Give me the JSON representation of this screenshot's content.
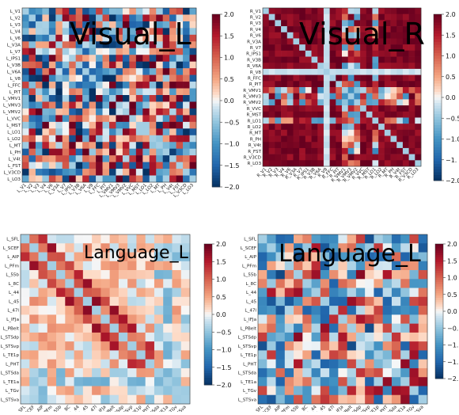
{
  "colorbar": {
    "ticks": [
      "2.0",
      "1.5",
      "1.0",
      "0.5",
      "0.0",
      "−0.5",
      "−1.0",
      "−1.5",
      "−2.0"
    ],
    "ticks_right_cut": [
      "2.0",
      "1.5",
      "1.0",
      "0.5",
      "0.0",
      "−0.5",
      "−1.0",
      "−1.5",
      "−2.0"
    ],
    "ticks_cut": [
      "2.0",
      "1.5",
      "1.0",
      "0.5",
      "0.0",
      "−0.",
      "−1.",
      "−1.",
      "−2."
    ],
    "ticks_vr": [
      "2.0",
      "1.5",
      "1.0",
      "0.5",
      "0.0",
      "−0.5",
      "−1.0",
      "−1.5",
      "−2.0"
    ],
    "ticks_vr_cut": [
      "2.0",
      "1.5",
      "1.0",
      "0.5",
      "0.0",
      "−0.5",
      "−1.0",
      "−1.",
      "−2.0"
    ]
  },
  "chart_data": [
    {
      "type": "heatmap",
      "title": "Visual_L",
      "labels": [
        "L_V1",
        "L_V2",
        "L_V3",
        "L_V4",
        "L_V6",
        "L_V3A",
        "L_V7",
        "L_IPS1",
        "L_V3B",
        "L_V6A",
        "L_V8",
        "L_FFC",
        "L_PIT",
        "L_VMV1",
        "L_VMV3",
        "L_VMV2",
        "L_VVC",
        "L_MST",
        "L_LO1",
        "L_LO2",
        "L_MT",
        "L_PH",
        "L_V4t",
        "L_FST",
        "L_V3CD",
        "L_LO3"
      ],
      "vmin": -2.0,
      "vmax": 2.0,
      "colormap": "RdBu_r",
      "pattern": "mixed"
    },
    {
      "type": "heatmap",
      "title": "Visual_R",
      "labels": [
        "R_V1",
        "R_V2",
        "R_V3",
        "R_V4",
        "R_V6",
        "R_V3A",
        "R_V7",
        "R_IPS1",
        "R_V3B",
        "R_V6A",
        "R_V8",
        "R_FFC",
        "R_PIT",
        "R_VMV1",
        "R_VMV3",
        "R_VMV2",
        "R_VVC",
        "R_MST",
        "R_LO1",
        "R_LO2",
        "R_MT",
        "R_PH",
        "R_V4t",
        "R_FST",
        "R_V3CD",
        "R_LO3"
      ],
      "vmin": -2.0,
      "vmax": 2.0,
      "colormap": "RdBu_r",
      "pattern": "strong_positive_with_bands"
    },
    {
      "type": "heatmap",
      "title": "Language_L",
      "labels": [
        "L_SFL",
        "L_SCEF",
        "L_AIP",
        "L_PFm",
        "L_55b",
        "L_8C",
        "L_44",
        "L_45",
        "L_47l",
        "L_IFJa",
        "L_PBelt",
        "L_STSdp",
        "L_STSvp",
        "L_TE1p",
        "L_PHT",
        "L_STSda",
        "L_TE1a",
        "L_TGv",
        "L_STSva"
      ],
      "vmin": -2.0,
      "vmax": 2.0,
      "colormap": "RdBu_r",
      "pattern": "mild_positive"
    },
    {
      "type": "heatmap",
      "title": "Language_L",
      "labels": [
        "L_SFL",
        "L_SCEF",
        "L_AIP",
        "L_PFm",
        "L_55b",
        "L_8C",
        "L_44",
        "L_45",
        "L_47l",
        "L_IFJa",
        "L_PBelt",
        "L_STSdp",
        "L_STSvp",
        "L_TE1p",
        "L_PHT",
        "L_STSda",
        "L_TE1a",
        "L_TGv",
        "L_STSva"
      ],
      "vmin": -2.0,
      "vmax": 2.0,
      "colormap": "RdBu_r",
      "pattern": "mixed_strong"
    }
  ]
}
